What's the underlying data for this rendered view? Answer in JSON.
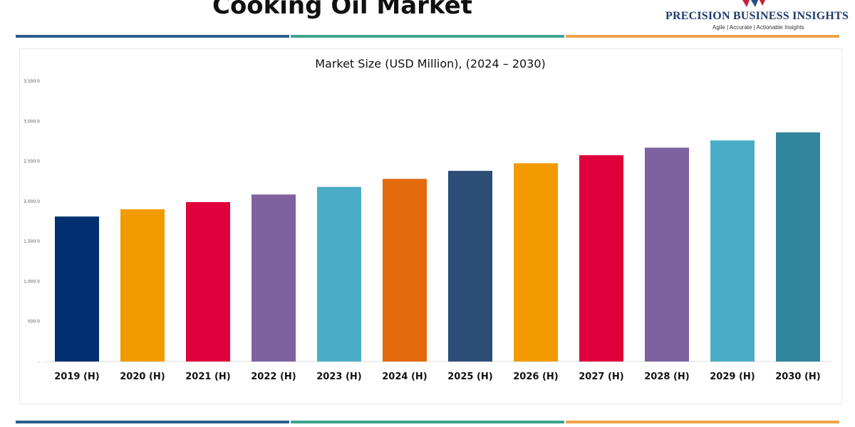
{
  "header": {
    "title": "Cooking Oil Market"
  },
  "brand": {
    "name": "PRECISION BUSINESS INSIGHTS",
    "tagline": "Agile | Accurate | Actionable Insights"
  },
  "colors": {
    "line_blue": "#2a5d8a",
    "line_teal": "#3fa38f",
    "line_orange": "#f0a24a"
  },
  "chart_data": {
    "type": "bar",
    "title": "Market Size (USD Million), (2024 – 2030)",
    "xlabel": "",
    "ylabel": "",
    "ylim": [
      0,
      3500
    ],
    "yticks": [
      0,
      500,
      1000,
      1500,
      2000,
      2500,
      3000,
      3500
    ],
    "ytick_labels": [
      "-",
      "500.0",
      "1,000.0",
      "1,500.0",
      "2,000.0",
      "2,500.0",
      "3,000.0",
      "3,500.0"
    ],
    "grid": false,
    "categories": [
      "2019 (H)",
      "2020 (H)",
      "2021 (H)",
      "2022 (H)",
      "2023 (H)",
      "2024 (H)",
      "2025 (H)",
      "2026 (H)",
      "2027 (H)",
      "2028 (H)",
      "2029 (H)",
      "2030 (H)"
    ],
    "values": [
      1810,
      1900,
      1990,
      2085,
      2180,
      2280,
      2380,
      2475,
      2575,
      2670,
      2760,
      2860
    ],
    "bar_colors": [
      "#003070",
      "#f29b00",
      "#e0003c",
      "#7e62a0",
      "#4aacc6",
      "#e36a0a",
      "#2c4d75",
      "#f29b00",
      "#e0003c",
      "#7e62a0",
      "#4aacc6",
      "#31859c"
    ]
  }
}
